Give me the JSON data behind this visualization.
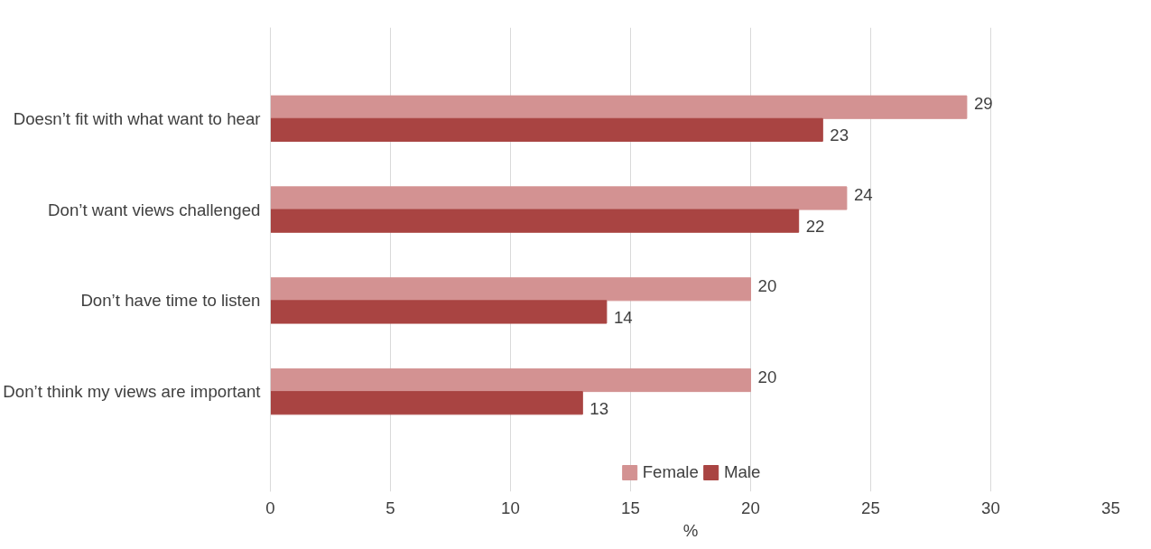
{
  "chart_data": {
    "type": "bar",
    "orientation": "horizontal",
    "categories": [
      "Doesn’t fit with what want to hear",
      "Don’t want views challenged",
      "Don’t have time to listen",
      "Don’t think my views are important"
    ],
    "series": [
      {
        "name": "Female",
        "color": "#d39292",
        "values": [
          29,
          24,
          20,
          20
        ]
      },
      {
        "name": "Male",
        "color": "#a94442",
        "values": [
          23,
          22,
          14,
          13
        ]
      }
    ],
    "xlim": [
      0,
      35
    ],
    "xticks": [
      0,
      5,
      10,
      15,
      20,
      25,
      30,
      35
    ],
    "xlabel": "%",
    "grid": "x",
    "legend": "bottom",
    "data_labels": true
  }
}
